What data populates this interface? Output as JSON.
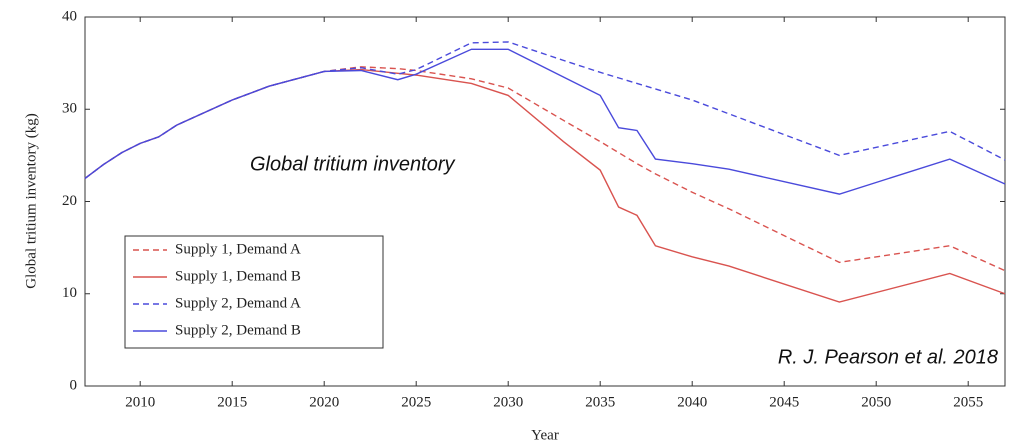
{
  "chart_data": {
    "type": "line",
    "xlabel": "Year",
    "ylabel": "Global tritium inventory (kg)",
    "annotations": [
      "Global tritium inventory",
      "R. J. Pearson et al. 2018"
    ],
    "x": [
      2007,
      2008,
      2009,
      2010,
      2011,
      2012,
      2015,
      2017,
      2020,
      2022,
      2024,
      2025,
      2028,
      2030,
      2033,
      2035,
      2036,
      2037,
      2038,
      2040,
      2042,
      2048,
      2054,
      2057
    ],
    "series": [
      {
        "name": "Supply 1, Demand A",
        "color": "#d9534f",
        "style": "dashed",
        "values": [
          22.5,
          24,
          25.3,
          26.3,
          27,
          28.3,
          31,
          32.5,
          34.1,
          34.6,
          34.4,
          34.2,
          33.3,
          32.3,
          28.8,
          26.5,
          25.3,
          24.1,
          23,
          21,
          19.2,
          13.4,
          15.2,
          12.5
        ]
      },
      {
        "name": "Supply 1, Demand B",
        "color": "#d9534f",
        "style": "solid",
        "values": [
          22.5,
          24,
          25.3,
          26.3,
          27,
          28.3,
          31,
          32.5,
          34.1,
          34.3,
          33.9,
          33.7,
          32.8,
          31.5,
          26.5,
          23.4,
          19.4,
          18.5,
          15.2,
          14,
          13,
          9.1,
          12.2,
          10
        ]
      },
      {
        "name": "Supply 2, Demand A",
        "color": "#4a4adb",
        "style": "dashed",
        "values": [
          22.5,
          24,
          25.3,
          26.3,
          27,
          28.3,
          31,
          32.5,
          34.1,
          34.5,
          33.8,
          34.3,
          37.2,
          37.3,
          35.3,
          34,
          33.4,
          32.8,
          32.2,
          31,
          29.5,
          25,
          27.6,
          24.5
        ]
      },
      {
        "name": "Supply 2, Demand B",
        "color": "#4a4adb",
        "style": "solid",
        "values": [
          22.5,
          24,
          25.3,
          26.3,
          27,
          28.3,
          31,
          32.5,
          34.1,
          34.2,
          33.2,
          33.8,
          36.5,
          36.5,
          33.5,
          31.5,
          28,
          27.7,
          24.6,
          24.1,
          23.5,
          20.8,
          24.6,
          21.9
        ]
      }
    ],
    "xlim": [
      2007,
      2057
    ],
    "ylim": [
      0,
      40
    ],
    "xticks": [
      2010,
      2015,
      2020,
      2025,
      2030,
      2035,
      2040,
      2045,
      2050,
      2055
    ],
    "yticks": [
      0,
      10,
      20,
      30,
      40
    ],
    "legend": "lower left"
  }
}
